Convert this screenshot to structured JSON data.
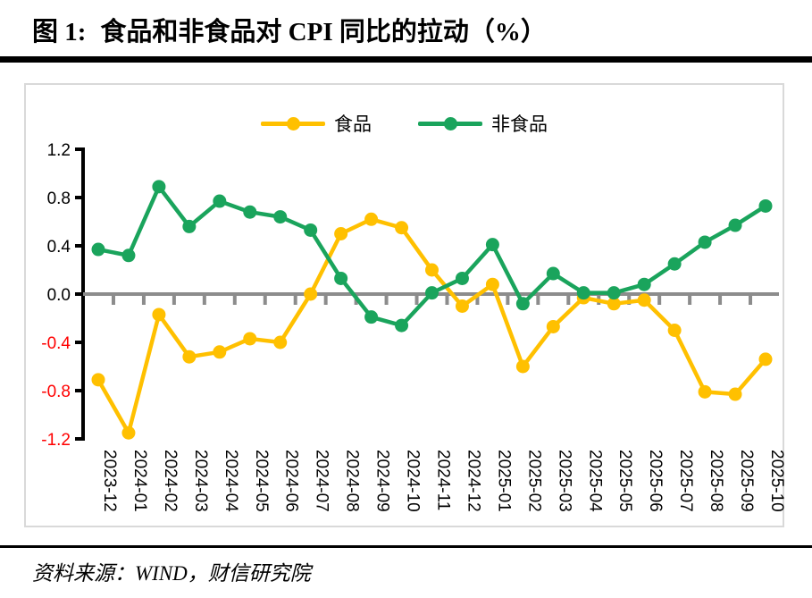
{
  "page": {
    "figure_label": "图 1:",
    "title": "食品和非食品对 CPI 同比的拉动（%）",
    "source": "资料来源：WIND，财信研究院"
  },
  "chart_data": {
    "type": "line",
    "title": "图 1: 食品和非食品对 CPI 同比的拉动（%）",
    "xlabel": "",
    "ylabel": "",
    "categories": [
      "2023-12",
      "2024-01",
      "2024-02",
      "2024-03",
      "2024-04",
      "2024-05",
      "2024-06",
      "2024-07",
      "2024-08",
      "2024-09",
      "2024-10",
      "2024-11",
      "2024-12",
      "2025-01",
      "2025-02",
      "2025-03",
      "2025-04",
      "2025-05",
      "2025-06",
      "2025-07",
      "2025-08",
      "2025-09",
      "2025-10"
    ],
    "series": [
      {
        "name": "食品",
        "color": "#FFC000",
        "values": [
          -0.71,
          -1.15,
          -0.17,
          -0.52,
          -0.48,
          -0.37,
          -0.4,
          0.0,
          0.5,
          0.62,
          0.55,
          0.2,
          -0.1,
          0.08,
          -0.6,
          -0.27,
          -0.03,
          -0.08,
          -0.05,
          -0.3,
          -0.81,
          -0.83,
          -0.54
        ]
      },
      {
        "name": "非食品",
        "color": "#1AA45C",
        "values": [
          0.37,
          0.32,
          0.89,
          0.56,
          0.77,
          0.68,
          0.64,
          0.53,
          0.13,
          -0.19,
          -0.26,
          0.01,
          0.13,
          0.41,
          -0.08,
          0.17,
          0.01,
          0.01,
          0.08,
          0.25,
          0.43,
          0.57,
          0.73
        ]
      }
    ],
    "ylim": [
      -1.2,
      1.2
    ],
    "yticks": [
      1.2,
      0.8,
      0.4,
      0.0,
      -0.4,
      -0.8,
      -1.2
    ],
    "ytick_positive_color": "#000000",
    "ytick_negative_color": "#FF0000",
    "axis_color": "#000000",
    "zero_line_color": "#8C8C8C",
    "grid": false,
    "marker": "circle",
    "legend_position": "top-center"
  }
}
